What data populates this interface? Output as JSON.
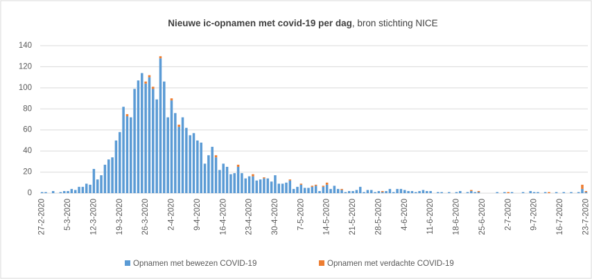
{
  "chart_data": {
    "type": "stacked_bar",
    "title": "Nieuwe ic-opnamen met covid-19 per dag",
    "title_source": ", bron stichting NICE",
    "categories": [
      "27-2-2020",
      null,
      null,
      null,
      null,
      null,
      null,
      "5-3-2020",
      null,
      null,
      null,
      null,
      null,
      null,
      "12-3-2020",
      null,
      null,
      null,
      null,
      null,
      null,
      "19-3-2020",
      null,
      null,
      null,
      null,
      null,
      null,
      "26-3-2020",
      null,
      null,
      null,
      null,
      null,
      null,
      "2-4-2020",
      null,
      null,
      null,
      null,
      null,
      null,
      "9-4-2020",
      null,
      null,
      null,
      null,
      null,
      null,
      "16-4-2020",
      null,
      null,
      null,
      null,
      null,
      null,
      "23-4-2020",
      null,
      null,
      null,
      null,
      null,
      null,
      "30-4-2020",
      null,
      null,
      null,
      null,
      null,
      null,
      "7-5-2020",
      null,
      null,
      null,
      null,
      null,
      null,
      "14-5-2020",
      null,
      null,
      null,
      null,
      null,
      null,
      "21-5-2020",
      null,
      null,
      null,
      null,
      null,
      null,
      "28-5-2020",
      null,
      null,
      null,
      null,
      null,
      null,
      "4-6-2020",
      null,
      null,
      null,
      null,
      null,
      null,
      "11-6-2020",
      null,
      null,
      null,
      null,
      null,
      null,
      "18-6-2020",
      null,
      null,
      null,
      null,
      null,
      null,
      "25-6-2020",
      null,
      null,
      null,
      null,
      null,
      null,
      "2-7-2020",
      null,
      null,
      null,
      null,
      null,
      null,
      "9-7-2020",
      null,
      null,
      null,
      null,
      null,
      null,
      "16-7-2020",
      null,
      null,
      null,
      null,
      null,
      null,
      "23-7-2020"
    ],
    "series": [
      {
        "name": "Opnamen met bewezen COVID-19",
        "color": "#5b9bd5",
        "values": [
          1,
          1,
          0,
          2,
          0,
          1,
          2,
          2,
          4,
          3,
          6,
          6,
          9,
          8,
          23,
          13,
          17,
          27,
          32,
          34,
          50,
          58,
          82,
          73,
          72,
          99,
          107,
          114,
          104,
          110,
          99,
          89,
          128,
          106,
          72,
          88,
          76,
          63,
          72,
          62,
          55,
          57,
          50,
          48,
          28,
          36,
          44,
          34,
          22,
          28,
          25,
          18,
          19,
          25,
          19,
          14,
          16,
          16,
          12,
          13,
          14,
          14,
          11,
          17,
          9,
          9,
          10,
          12,
          4,
          6,
          8,
          5,
          5,
          6,
          7,
          2,
          6,
          8,
          4,
          7,
          4,
          3,
          1,
          2,
          2,
          3,
          6,
          1,
          3,
          3,
          1,
          2,
          1,
          2,
          4,
          1,
          4,
          4,
          3,
          2,
          2,
          1,
          2,
          3,
          2,
          2,
          0,
          1,
          1,
          0,
          1,
          0,
          1,
          2,
          0,
          1,
          2,
          1,
          1,
          0,
          0,
          0,
          0,
          1,
          0,
          1,
          0,
          1,
          0,
          0,
          1,
          0,
          2,
          1,
          1,
          0,
          1,
          0,
          0,
          1,
          0,
          1,
          0,
          1,
          0,
          1,
          4,
          1
        ]
      },
      {
        "name": "Opnamen met verdachte COVID-19",
        "color": "#ed7d31",
        "values": [
          0,
          0,
          0,
          0,
          0,
          0,
          0,
          0,
          0,
          0,
          0,
          0,
          0,
          0,
          0,
          0,
          0,
          0,
          0,
          0,
          0,
          0,
          0,
          2,
          0,
          0,
          0,
          0,
          2,
          2,
          2,
          0,
          2,
          0,
          0,
          2,
          0,
          2,
          0,
          0,
          0,
          0,
          0,
          0,
          0,
          0,
          0,
          2,
          0,
          0,
          0,
          0,
          0,
          2,
          0,
          0,
          0,
          2,
          0,
          0,
          1,
          0,
          0,
          0,
          0,
          0,
          0,
          1,
          0,
          0,
          1,
          0,
          0,
          1,
          1,
          0,
          1,
          2,
          0,
          0,
          0,
          1,
          0,
          0,
          0,
          0,
          0,
          0,
          0,
          0,
          0,
          0,
          1,
          0,
          0,
          0,
          0,
          0,
          0,
          0,
          0,
          0,
          0,
          0,
          0,
          0,
          0,
          0,
          0,
          0,
          0,
          0,
          0,
          0,
          0,
          0,
          1,
          0,
          1,
          0,
          0,
          0,
          0,
          0,
          0,
          0,
          1,
          0,
          0,
          0,
          0,
          0,
          0,
          0,
          0,
          0,
          0,
          1,
          0,
          0,
          0,
          0,
          0,
          0,
          0,
          0,
          4,
          1
        ]
      }
    ],
    "ylim": [
      0,
      140
    ],
    "yticks": [
      0,
      20,
      40,
      60,
      80,
      100,
      120,
      140
    ],
    "grid": true,
    "legend": "bottom"
  }
}
